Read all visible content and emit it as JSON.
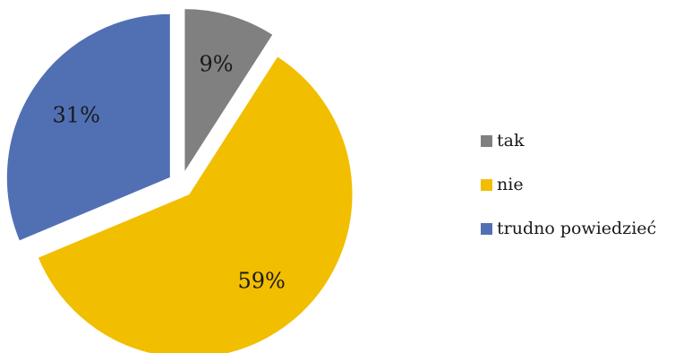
{
  "chart_data": {
    "type": "pie",
    "title": "",
    "categories": [
      "tak",
      "nie",
      "trudno powiedzieć"
    ],
    "values": [
      9,
      59,
      31
    ],
    "data_labels": [
      "9%",
      "59%",
      "31%"
    ],
    "colors": [
      "#808080",
      "#F2BE00",
      "#5170B4"
    ],
    "exploded": true,
    "legend_position": "right"
  },
  "legend": {
    "items": [
      {
        "label": "tak",
        "color": "#808080"
      },
      {
        "label": "nie",
        "color": "#F2BE00"
      },
      {
        "label": "trudno powiedzieć",
        "color": "#5170B4"
      }
    ]
  }
}
